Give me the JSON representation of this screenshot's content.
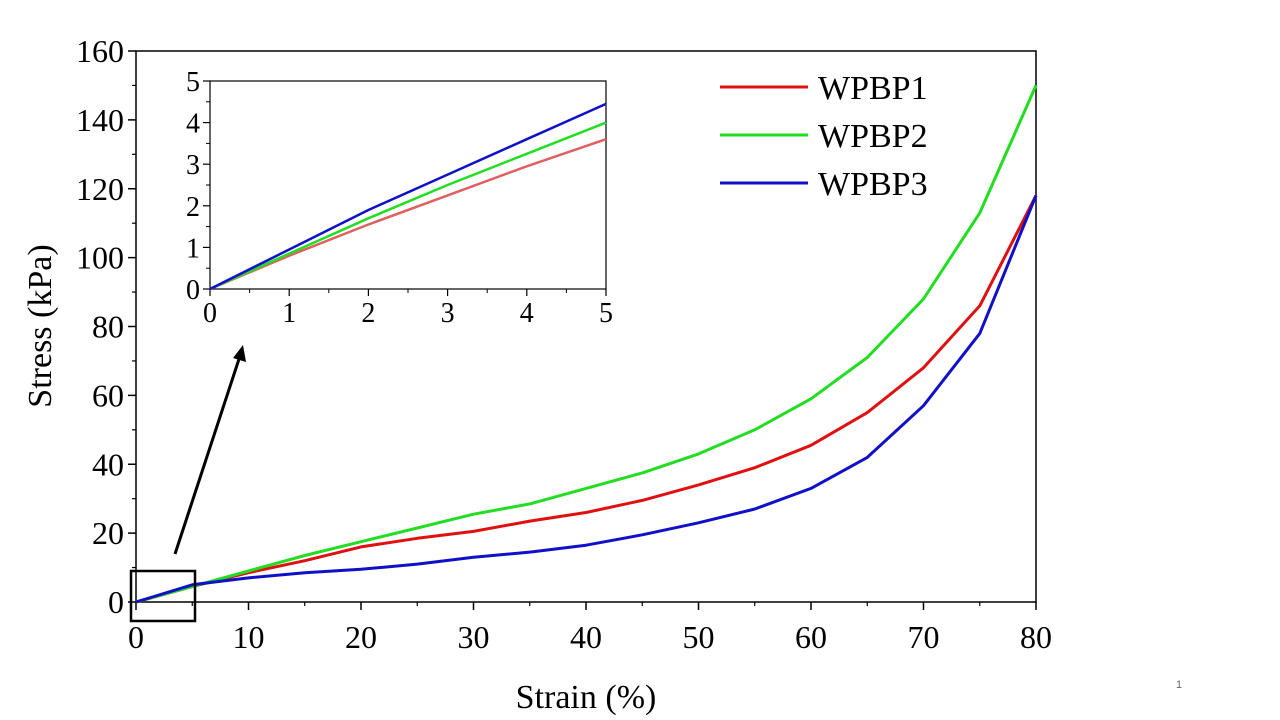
{
  "page_number": "1",
  "chart_data": [
    {
      "type": "line",
      "role": "main",
      "xlabel": "Strain (%)",
      "ylabel": "Stress (kPa)",
      "xlim": [
        0,
        80
      ],
      "ylim": [
        0,
        160
      ],
      "x_ticks": [
        "0",
        "10",
        "20",
        "30",
        "40",
        "50",
        "60",
        "70",
        "80"
      ],
      "y_ticks": [
        "0",
        "20",
        "40",
        "60",
        "80",
        "100",
        "120",
        "140",
        "160"
      ],
      "grid": false,
      "legend_position": "top-right",
      "series": [
        {
          "name": "WPBP1",
          "color": "#e01010",
          "points": [
            [
              0,
              0
            ],
            [
              5,
              4.5
            ],
            [
              10,
              8.5
            ],
            [
              15,
              12
            ],
            [
              20,
              16
            ],
            [
              25,
              18.5
            ],
            [
              30,
              20.5
            ],
            [
              35,
              23.5
            ],
            [
              40,
              26
            ],
            [
              45,
              29.5
            ],
            [
              50,
              34
            ],
            [
              55,
              39
            ],
            [
              60,
              45.5
            ],
            [
              65,
              55
            ],
            [
              70,
              68
            ],
            [
              75,
              86
            ],
            [
              80,
              118
            ]
          ]
        },
        {
          "name": "WPBP2",
          "color": "#22dd22",
          "points": [
            [
              0,
              0
            ],
            [
              5,
              4.5
            ],
            [
              10,
              9
            ],
            [
              15,
              13.5
            ],
            [
              20,
              17.5
            ],
            [
              25,
              21.5
            ],
            [
              30,
              25.5
            ],
            [
              35,
              28.5
            ],
            [
              40,
              33
            ],
            [
              45,
              37.5
            ],
            [
              50,
              43
            ],
            [
              55,
              50
            ],
            [
              60,
              59
            ],
            [
              65,
              71
            ],
            [
              70,
              88
            ],
            [
              75,
              113
            ],
            [
              80,
              150
            ]
          ]
        },
        {
          "name": "WPBP3",
          "color": "#1010c8",
          "points": [
            [
              0,
              0
            ],
            [
              5,
              5
            ],
            [
              10,
              7
            ],
            [
              15,
              8.5
            ],
            [
              20,
              9.5
            ],
            [
              25,
              11
            ],
            [
              30,
              13
            ],
            [
              35,
              14.5
            ],
            [
              40,
              16.5
            ],
            [
              45,
              19.5
            ],
            [
              50,
              23
            ],
            [
              55,
              27
            ],
            [
              60,
              33
            ],
            [
              65,
              42
            ],
            [
              70,
              57
            ],
            [
              75,
              78
            ],
            [
              80,
              118
            ]
          ]
        }
      ]
    },
    {
      "type": "line",
      "role": "inset",
      "xlim": [
        0,
        5
      ],
      "ylim": [
        0,
        5
      ],
      "x_ticks": [
        "0",
        "1",
        "2",
        "3",
        "4",
        "5"
      ],
      "y_ticks": [
        "0",
        "1",
        "2",
        "3",
        "4",
        "5"
      ],
      "grid": false,
      "series": [
        {
          "name": "WPBP1",
          "color": "#e06060",
          "points": [
            [
              0,
              0
            ],
            [
              1,
              0.8
            ],
            [
              2,
              1.55
            ],
            [
              3,
              2.25
            ],
            [
              4,
              2.95
            ],
            [
              5,
              3.6
            ]
          ]
        },
        {
          "name": "WPBP2",
          "color": "#22dd22",
          "points": [
            [
              0,
              0
            ],
            [
              1,
              0.85
            ],
            [
              2,
              1.7
            ],
            [
              3,
              2.5
            ],
            [
              4,
              3.25
            ],
            [
              5,
              4.0
            ]
          ]
        },
        {
          "name": "WPBP3",
          "color": "#1010c8",
          "points": [
            [
              0,
              0
            ],
            [
              1,
              0.95
            ],
            [
              2,
              1.9
            ],
            [
              3,
              2.75
            ],
            [
              4,
              3.6
            ],
            [
              5,
              4.45
            ]
          ]
        }
      ]
    }
  ]
}
